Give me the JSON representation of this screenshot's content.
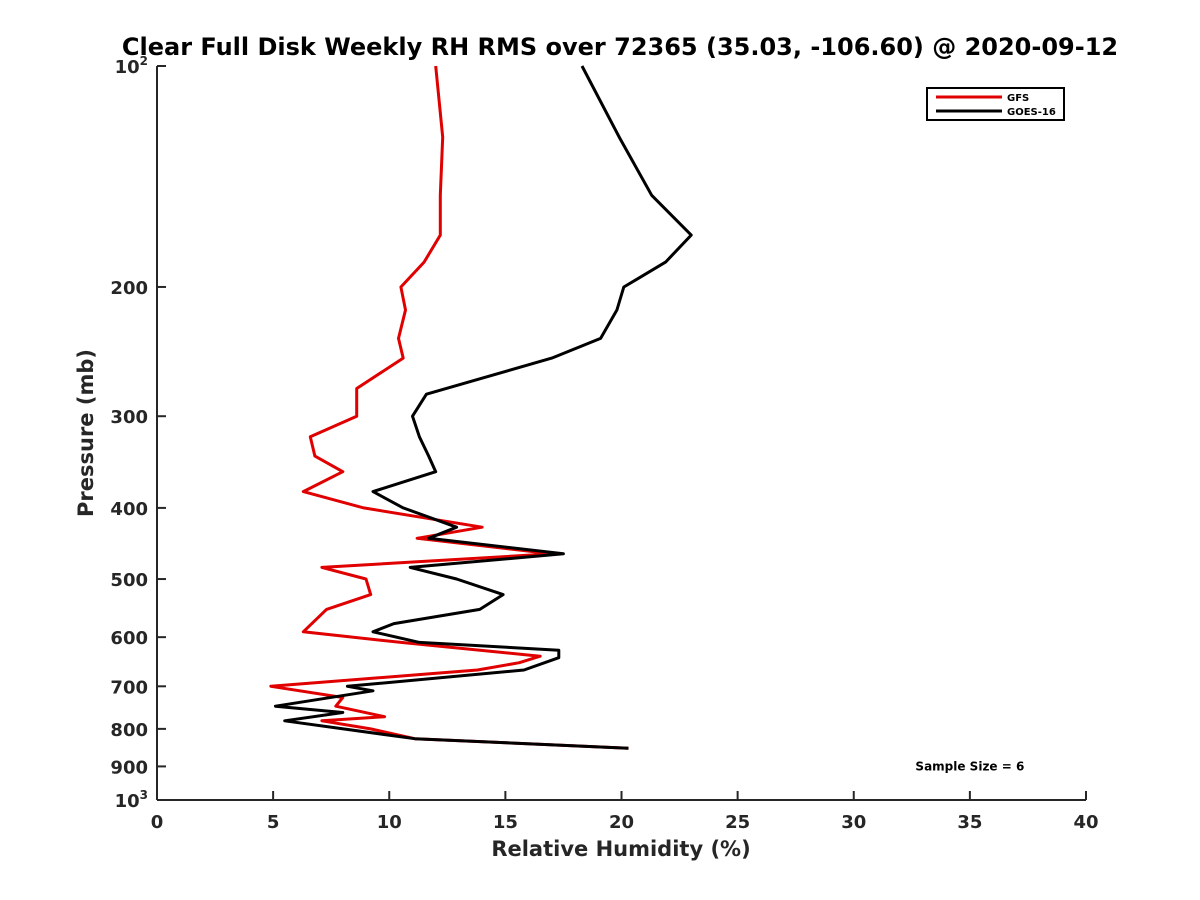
{
  "chart_data": {
    "type": "line",
    "title": "Clear Full Disk Weekly RH RMS over 72365 (35.03, -106.60) @ 2020-09-12",
    "xlabel": "Relative Humidity (%)",
    "ylabel": "Pressure (mb)",
    "xlim": [
      0,
      40
    ],
    "ylim": [
      100,
      1000
    ],
    "yscale": "log",
    "y_reversed": true,
    "x_ticks": [
      0,
      5,
      10,
      15,
      20,
      25,
      30,
      35,
      40
    ],
    "y_ticks": [
      {
        "value": 100,
        "base": "10",
        "exp": "2"
      },
      {
        "value": 200,
        "label": "200"
      },
      {
        "value": 300,
        "label": "300"
      },
      {
        "value": 400,
        "label": "400"
      },
      {
        "value": 500,
        "label": "500"
      },
      {
        "value": 600,
        "label": "600"
      },
      {
        "value": 700,
        "label": "700"
      },
      {
        "value": 800,
        "label": "800"
      },
      {
        "value": 900,
        "label": "900"
      },
      {
        "value": 1000,
        "base": "10",
        "exp": "3"
      }
    ],
    "grid": false,
    "legend_position": "top-right",
    "series": [
      {
        "name": "GFS",
        "color": "#e00000",
        "points": [
          [
            12.0,
            100
          ],
          [
            12.3,
            125
          ],
          [
            12.2,
            150
          ],
          [
            12.2,
            170
          ],
          [
            11.5,
            185
          ],
          [
            10.5,
            200
          ],
          [
            10.7,
            215
          ],
          [
            10.4,
            235
          ],
          [
            10.6,
            250
          ],
          [
            8.6,
            275
          ],
          [
            8.6,
            300
          ],
          [
            6.6,
            320
          ],
          [
            6.8,
            340
          ],
          [
            8.0,
            357
          ],
          [
            6.3,
            380
          ],
          [
            8.9,
            400
          ],
          [
            14.0,
            425
          ],
          [
            11.2,
            440
          ],
          [
            17.0,
            462
          ],
          [
            7.1,
            482
          ],
          [
            9.0,
            500
          ],
          [
            9.2,
            525
          ],
          [
            7.3,
            550
          ],
          [
            6.3,
            590
          ],
          [
            10.5,
            610
          ],
          [
            16.5,
            637
          ],
          [
            15.6,
            650
          ],
          [
            13.8,
            665
          ],
          [
            4.9,
            700
          ],
          [
            8.0,
            725
          ],
          [
            7.7,
            745
          ],
          [
            9.8,
            770
          ],
          [
            7.1,
            780
          ],
          [
            9.2,
            800
          ],
          [
            11.1,
            825
          ],
          [
            20.3,
            850
          ]
        ]
      },
      {
        "name": "GOES-16",
        "color": "#000000",
        "points": [
          [
            18.3,
            100
          ],
          [
            19.9,
            125
          ],
          [
            21.3,
            150
          ],
          [
            23.0,
            170
          ],
          [
            21.9,
            185
          ],
          [
            20.1,
            200
          ],
          [
            19.8,
            215
          ],
          [
            19.1,
            235
          ],
          [
            17.0,
            250
          ],
          [
            11.6,
            280
          ],
          [
            11.0,
            300
          ],
          [
            11.3,
            320
          ],
          [
            11.7,
            340
          ],
          [
            12.0,
            357
          ],
          [
            9.3,
            380
          ],
          [
            10.6,
            400
          ],
          [
            12.9,
            425
          ],
          [
            11.7,
            440
          ],
          [
            17.5,
            462
          ],
          [
            10.9,
            482
          ],
          [
            12.9,
            500
          ],
          [
            14.9,
            525
          ],
          [
            13.9,
            550
          ],
          [
            10.2,
            575
          ],
          [
            9.3,
            590
          ],
          [
            11.3,
            610
          ],
          [
            17.3,
            625
          ],
          [
            17.3,
            640
          ],
          [
            15.8,
            665
          ],
          [
            8.2,
            700
          ],
          [
            9.3,
            710
          ],
          [
            5.1,
            745
          ],
          [
            8.0,
            760
          ],
          [
            5.5,
            780
          ],
          [
            11.1,
            825
          ],
          [
            20.3,
            850
          ]
        ]
      }
    ],
    "annotations": [
      {
        "text": "Sample Size = 6",
        "x": 35,
        "y": 900
      }
    ]
  }
}
